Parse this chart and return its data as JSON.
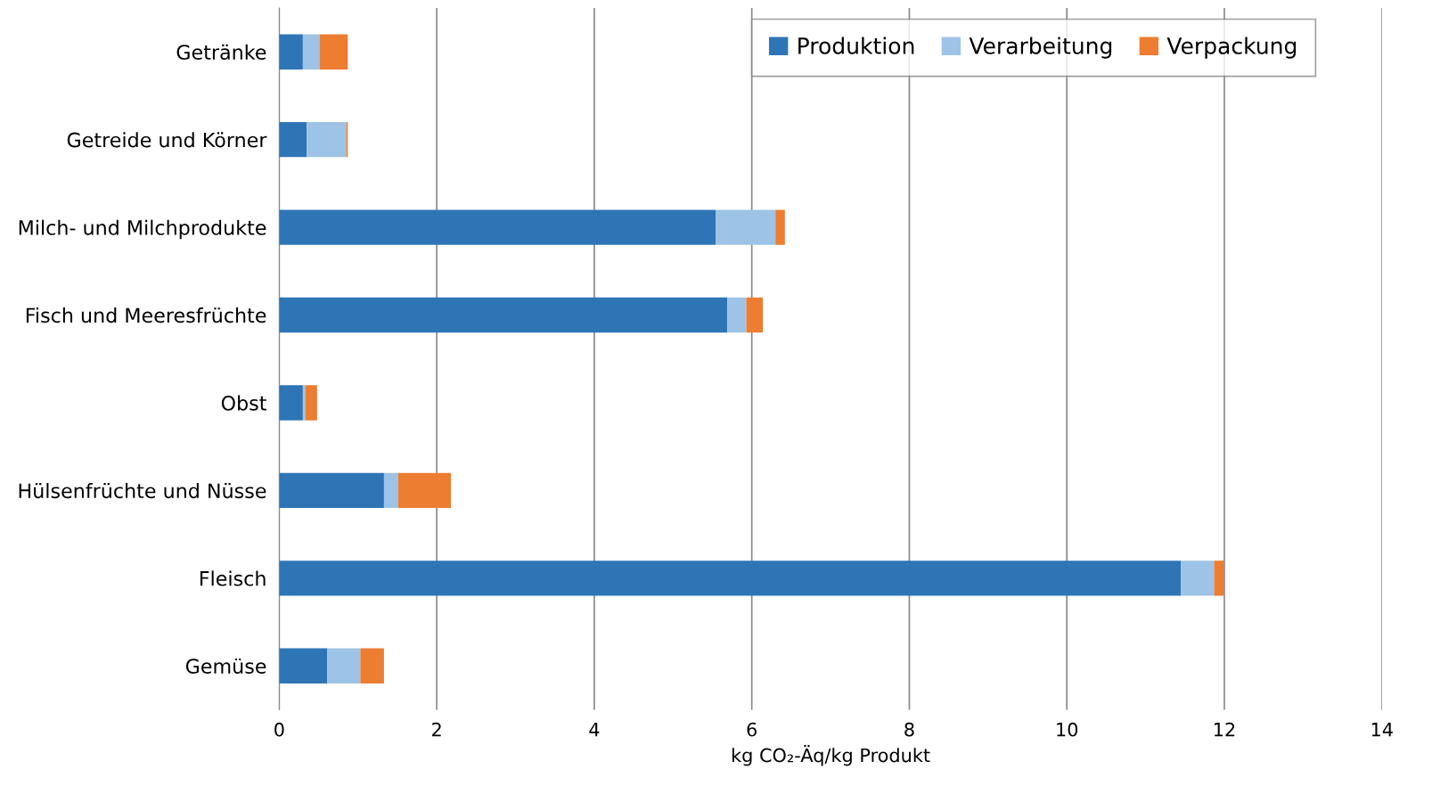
{
  "chart_data": {
    "type": "bar",
    "orientation": "horizontal",
    "stacked": true,
    "categories": [
      "Getränke",
      "Getreide und Körner",
      "Milch- und Milchprodukte",
      "Fisch und Meeresfrüchte",
      "Obst",
      "Hülsenfrüchte und Nüsse",
      "Fleisch",
      "Gemüse"
    ],
    "series": [
      {
        "name": "Produktion",
        "color": "#2e75b6",
        "values": [
          0.3,
          0.35,
          5.54,
          5.69,
          0.3,
          1.33,
          11.45,
          0.61
        ]
      },
      {
        "name": "Verarbeitung",
        "color": "#9dc3e6",
        "values": [
          0.21,
          0.5,
          0.76,
          0.24,
          0.03,
          0.18,
          0.42,
          0.42
        ]
      },
      {
        "name": "Verpackung",
        "color": "#ed7d31",
        "values": [
          0.36,
          0.02,
          0.12,
          0.21,
          0.15,
          0.67,
          0.12,
          0.3
        ]
      }
    ],
    "xlabel": "kg CO₂-Äq/kg Produkt",
    "xlim": [
      0,
      14
    ],
    "xticks": [
      0,
      2,
      4,
      6,
      8,
      10,
      12,
      14
    ],
    "grid": "x",
    "legend": "top right"
  }
}
